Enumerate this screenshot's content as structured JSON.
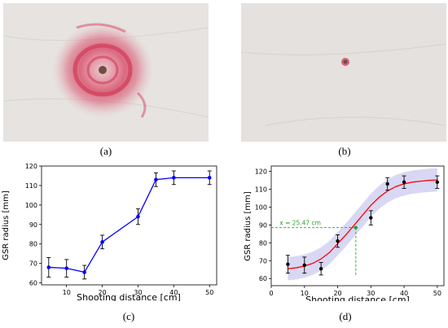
{
  "panels": {
    "a": {
      "caption": "(a)"
    },
    "b": {
      "caption": "(b)"
    },
    "c": {
      "caption": "(c)"
    },
    "d": {
      "caption": "(d)"
    }
  },
  "colors": {
    "target_paper": "#e6e3e0",
    "gsr_stain": "#d8405f",
    "bullet_hole": "#6b4f44",
    "series_blue": "#0000ff",
    "fit_red": "#ff0000",
    "band_fill": "#c8c8f0",
    "guide_green": "#2ca02c"
  },
  "chart_data": [
    {
      "type": "line",
      "panel": "c",
      "title": "",
      "xlabel": "Shooting distance [cm]",
      "ylabel": "GSR radius [mm]",
      "xlim": [
        3,
        52
      ],
      "ylim": [
        59,
        120
      ],
      "xticks": [
        10,
        20,
        30,
        40,
        50
      ],
      "yticks": [
        60,
        70,
        80,
        90,
        100,
        110,
        120
      ],
      "grid": false,
      "series": [
        {
          "x": [
            5,
            10,
            15,
            20,
            30,
            35,
            40,
            50
          ],
          "y": [
            68,
            67.5,
            65.5,
            81,
            94,
            113,
            114,
            114
          ],
          "err": [
            5,
            4.5,
            3.5,
            3.5,
            4,
            3.5,
            3.5,
            3.5
          ]
        }
      ]
    },
    {
      "type": "scatter",
      "panel": "d",
      "title": "",
      "xlabel": "Shooting distance [cm]",
      "ylabel": "GSR radius [mm]",
      "xlim": [
        0,
        52
      ],
      "ylim": [
        56,
        123
      ],
      "xticks": [
        0,
        10,
        20,
        30,
        40,
        50
      ],
      "yticks": [
        60,
        70,
        80,
        90,
        100,
        110,
        120
      ],
      "grid": false,
      "points": {
        "x": [
          5,
          10,
          15,
          20,
          30,
          35,
          40,
          50
        ],
        "y": [
          68,
          67.5,
          65.5,
          81,
          94,
          113,
          114,
          114
        ],
        "err": [
          5,
          4.5,
          3.5,
          3.5,
          4,
          3.5,
          3.5,
          3.5
        ]
      },
      "fit": {
        "x": [
          5,
          7.5,
          10,
          12.5,
          15,
          17.5,
          20,
          22.5,
          25,
          27.5,
          30,
          32.5,
          35,
          37.5,
          40,
          42.5,
          45,
          47.5,
          50
        ],
        "y": [
          65.5,
          66,
          67,
          68.5,
          71,
          74.5,
          79.5,
          84.5,
          90,
          95.5,
          101,
          105.5,
          109,
          111.5,
          113,
          114,
          114.5,
          115,
          115.2
        ],
        "band": 6.5
      },
      "annotation": {
        "text": "x = 25.47 cm",
        "x": 25.47,
        "y": 88.5
      }
    }
  ]
}
